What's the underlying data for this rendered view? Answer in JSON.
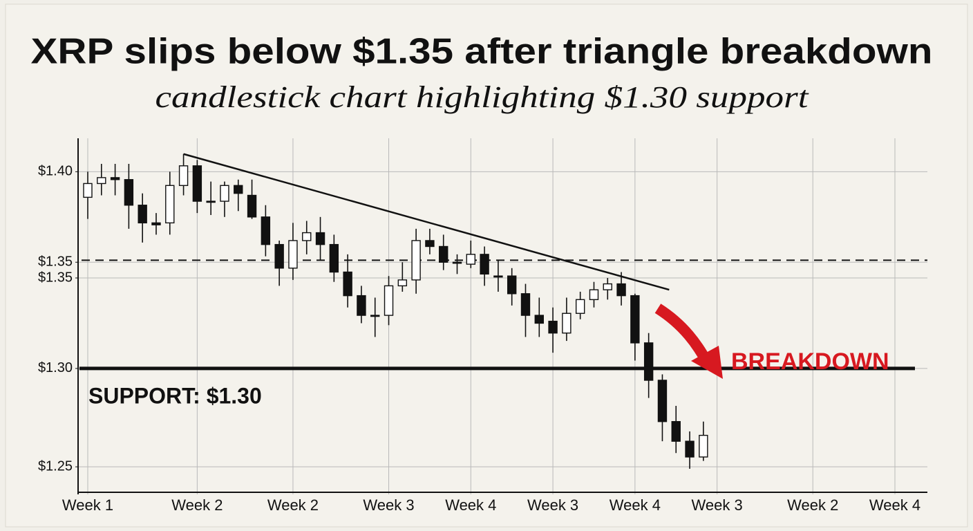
{
  "chart_data": {
    "type": "candlestick",
    "title": "XRP slips below $1.35 after triangle breakdown",
    "subtitle": "candlestick chart highlighting $1.30 support",
    "categories": [
      "Week 1",
      null,
      null,
      null,
      null,
      null,
      null,
      null,
      "Week 2",
      null,
      null,
      null,
      null,
      null,
      null,
      "Week 2",
      null,
      null,
      null,
      null,
      null,
      null,
      "Week 3",
      null,
      null,
      null,
      null,
      null,
      "Week 4",
      null,
      null,
      null,
      null,
      null,
      "Week 3",
      null,
      null,
      null,
      null,
      null,
      "Week 4",
      null,
      null,
      null,
      null,
      null,
      "Week 3",
      null,
      null,
      null,
      null,
      null,
      null,
      "Week 2",
      null,
      null,
      null,
      null,
      null,
      "Week 4"
    ],
    "open": [
      1.387,
      1.394,
      1.397,
      1.396,
      1.383,
      1.374,
      1.374,
      1.393,
      1.403,
      1.385,
      1.385,
      1.393,
      1.388,
      1.377,
      1.363,
      1.351,
      1.365,
      1.369,
      1.363,
      1.349,
      1.337,
      1.327,
      1.327,
      1.342,
      1.345,
      1.365,
      1.362,
      1.354,
      1.353,
      1.358,
      1.347,
      1.347,
      1.338,
      1.327,
      1.324,
      1.318,
      1.328,
      1.335,
      1.34,
      1.343,
      1.337,
      1.313,
      1.294,
      1.273,
      1.263,
      1.255,
      null,
      null,
      null,
      null,
      null,
      null,
      null,
      null,
      null,
      null,
      null,
      null,
      null,
      null
    ],
    "high": [
      1.4,
      1.404,
      1.404,
      1.404,
      1.389,
      1.379,
      1.4,
      1.409,
      1.406,
      1.395,
      1.395,
      1.396,
      1.396,
      1.383,
      1.365,
      1.374,
      1.375,
      1.377,
      1.368,
      1.358,
      1.342,
      1.336,
      1.347,
      1.354,
      1.371,
      1.371,
      1.368,
      1.358,
      1.365,
      1.362,
      1.355,
      1.351,
      1.343,
      1.336,
      1.331,
      1.336,
      1.339,
      1.344,
      1.346,
      1.349,
      1.338,
      1.318,
      1.297,
      1.281,
      1.268,
      1.273,
      null,
      null,
      null,
      null,
      null,
      null,
      null,
      null,
      null,
      null,
      null,
      null,
      null,
      null
    ],
    "low": [
      1.376,
      1.388,
      1.388,
      1.371,
      1.364,
      1.368,
      1.368,
      1.388,
      1.379,
      1.378,
      1.377,
      1.38,
      1.376,
      1.357,
      1.342,
      1.345,
      1.358,
      1.355,
      1.344,
      1.331,
      1.323,
      1.316,
      1.322,
      1.339,
      1.338,
      1.358,
      1.35,
      1.348,
      1.351,
      1.342,
      1.339,
      1.332,
      1.316,
      1.316,
      1.308,
      1.314,
      1.325,
      1.331,
      1.335,
      1.332,
      1.304,
      1.285,
      1.263,
      1.257,
      1.249,
      1.253,
      null,
      null,
      null,
      null,
      null,
      null,
      null,
      null,
      null,
      null,
      null,
      null,
      null,
      null
    ],
    "close": [
      1.394,
      1.397,
      1.396,
      1.383,
      1.374,
      1.373,
      1.393,
      1.403,
      1.385,
      1.385,
      1.393,
      1.389,
      1.377,
      1.363,
      1.351,
      1.365,
      1.369,
      1.363,
      1.349,
      1.337,
      1.327,
      1.327,
      1.342,
      1.345,
      1.365,
      1.362,
      1.354,
      1.354,
      1.358,
      1.348,
      1.347,
      1.338,
      1.327,
      1.323,
      1.318,
      1.328,
      1.335,
      1.34,
      1.343,
      1.337,
      1.313,
      1.294,
      1.273,
      1.263,
      1.255,
      1.266,
      null,
      null,
      null,
      null,
      null,
      null,
      null,
      null,
      null,
      null,
      null,
      null,
      null,
      null
    ],
    "up_color": "#ffffff",
    "down_color": "#111111",
    "ylim": [
      1.236,
      1.417
    ],
    "yticks": [
      {
        "value": 1.4,
        "label": "$1.40"
      },
      {
        "value": 1.354,
        "label": "$1.35"
      },
      {
        "value": 1.346,
        "label": "$1.35"
      },
      {
        "value": 1.3,
        "label": "$1.30"
      },
      {
        "value": 1.25,
        "label": "$1.25"
      }
    ],
    "grid": true,
    "support": {
      "value": 1.3,
      "label": "SUPPORT: $1.30"
    },
    "resistance": 1.355,
    "trendline": [
      1.409,
      1.34
    ],
    "annotation": {
      "text": "BREAKDOWN",
      "color": "#d71920"
    }
  }
}
